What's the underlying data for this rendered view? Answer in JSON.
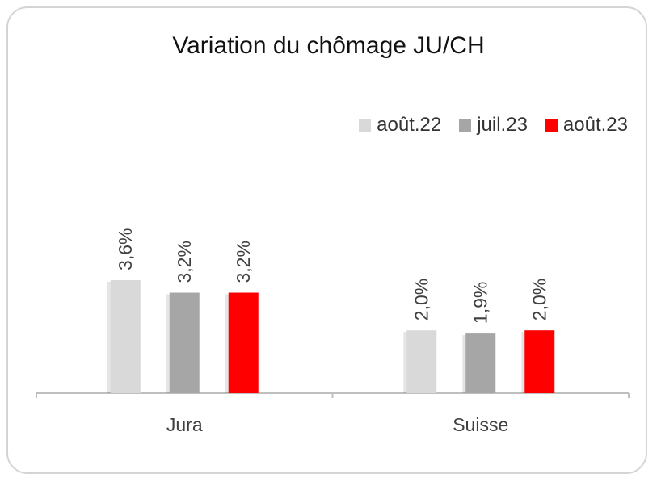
{
  "chart_data": {
    "type": "bar",
    "title": "Variation du chômage JU/CH",
    "xlabel": "",
    "ylabel": "",
    "categories": [
      "Jura",
      "Suisse"
    ],
    "series": [
      {
        "name": "août.22",
        "color": "#d9d9d9",
        "values": [
          3.6,
          2.0
        ],
        "labels": [
          "3,6%",
          "2,0%"
        ]
      },
      {
        "name": "juil.23",
        "color": "#a6a6a6",
        "values": [
          3.2,
          1.9
        ],
        "labels": [
          "3,2%",
          "1,9%"
        ]
      },
      {
        "name": "août.23",
        "color": "#ff0000",
        "values": [
          3.2,
          2.0
        ],
        "labels": [
          "3,2%",
          "2,0%"
        ]
      }
    ],
    "ylim": [
      0,
      5
    ],
    "grid": false,
    "legend_position": "top-right"
  }
}
